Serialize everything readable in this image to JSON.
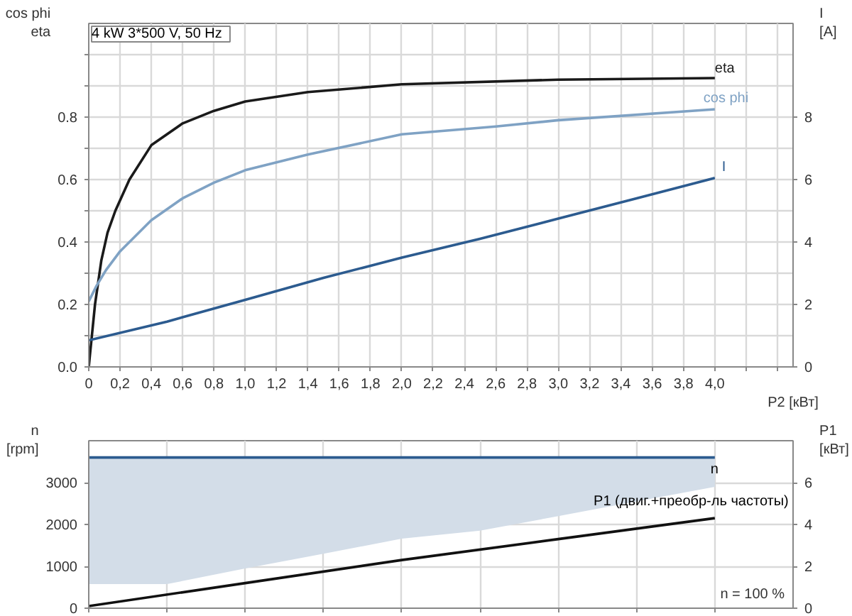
{
  "chart_data": [
    {
      "type": "line",
      "title": "4 kW   3*500 V, 50 Hz",
      "xlabel": "P2 [кВт]",
      "ylabel": "cos phi\neta",
      "y2label": "I\n[A]",
      "xlim": [
        0,
        4.5
      ],
      "xticks": [
        0,
        {
          "value": 0.2,
          "label": "0,2"
        },
        {
          "value": 0.4,
          "label": "0,4"
        },
        {
          "value": 0.6,
          "label": "0,6"
        },
        {
          "value": 0.8,
          "label": "0,8"
        },
        {
          "value": 1.0,
          "label": "1,0"
        },
        {
          "value": 1.2,
          "label": "1,2"
        },
        {
          "value": 1.4,
          "label": "1,4"
        },
        {
          "value": 1.6,
          "label": "1,6"
        },
        {
          "value": 1.8,
          "label": "1,8"
        },
        {
          "value": 2.0,
          "label": "2,0"
        },
        {
          "value": 2.2,
          "label": "2,2"
        },
        {
          "value": 2.4,
          "label": "2,4"
        },
        {
          "value": 2.6,
          "label": "2,6"
        },
        {
          "value": 2.8,
          "label": "2,8"
        },
        {
          "value": 3.0,
          "label": "3,0"
        },
        {
          "value": 3.2,
          "label": "3,2"
        },
        {
          "value": 3.4,
          "label": "3,4"
        },
        {
          "value": 3.6,
          "label": "3,6"
        },
        {
          "value": 3.8,
          "label": "3,8"
        },
        {
          "value": 4.0,
          "label": "4,0"
        },
        {
          "value": 4.2,
          "label": null
        },
        {
          "value": 4.4,
          "label": null
        }
      ],
      "ylim": [
        0,
        1.1
      ],
      "yticks": [
        {
          "value": 0,
          "label": "0.0"
        },
        {
          "value": 0.1,
          "label": null
        },
        {
          "value": 0.2,
          "label": "0.2"
        },
        {
          "value": 0.3,
          "label": null
        },
        {
          "value": 0.4,
          "label": "0.4"
        },
        {
          "value": 0.5,
          "label": null
        },
        {
          "value": 0.6,
          "label": "0.6"
        },
        {
          "value": 0.7,
          "label": null
        },
        {
          "value": 0.8,
          "label": "0.8"
        },
        {
          "value": 0.9,
          "label": null
        },
        {
          "value": 1.0,
          "label": null
        }
      ],
      "y2lim": [
        0,
        11
      ],
      "y2ticks": [
        0,
        2,
        4,
        6,
        8
      ],
      "grid": true,
      "series": [
        {
          "name": "eta",
          "color": "#1a1a1a",
          "x": [
            0,
            0.04,
            0.08,
            0.12,
            0.17,
            0.26,
            0.4,
            0.6,
            0.8,
            1.0,
            1.4,
            2.0,
            3.0,
            4.0
          ],
          "values": [
            0,
            0.2,
            0.34,
            0.43,
            0.5,
            0.6,
            0.71,
            0.78,
            0.82,
            0.85,
            0.88,
            0.905,
            0.92,
            0.925
          ]
        },
        {
          "name": "cos phi",
          "color": "#7fa2c4",
          "x": [
            0,
            0.05,
            0.11,
            0.2,
            0.4,
            0.6,
            0.8,
            1.0,
            1.4,
            2.0,
            2.6,
            3.0,
            4.0
          ],
          "values": [
            0.21,
            0.26,
            0.31,
            0.37,
            0.47,
            0.54,
            0.59,
            0.63,
            0.68,
            0.745,
            0.77,
            0.79,
            0.825
          ]
        },
        {
          "name": "I",
          "color": "#2c5b8f",
          "axis": "y2",
          "x": [
            0,
            0.5,
            1.0,
            1.5,
            2.0,
            2.5,
            3.0,
            3.5,
            4.0
          ],
          "values": [
            0.85,
            1.45,
            2.15,
            2.85,
            3.5,
            4.1,
            4.75,
            5.4,
            6.05
          ]
        }
      ]
    },
    {
      "type": "line",
      "ylabel": "n\n[rpm]",
      "y2label": "P1\n[кВт]",
      "annotations": [
        "n = 100 %"
      ],
      "xlim": [
        0,
        4.5
      ],
      "xticks": [
        0,
        0.5,
        1,
        1.5,
        2,
        2.5,
        3,
        3.5,
        4
      ],
      "tick_labels": "y",
      "ylim": [
        0,
        4000
      ],
      "yticks": [
        0,
        1000,
        2000,
        3000
      ],
      "y2lim": [
        0,
        8
      ],
      "y2ticks": [
        0,
        2,
        4,
        6
      ],
      "grid": true,
      "series": [
        {
          "name": "n",
          "color": "#2c5b8f",
          "x": [
            0,
            0.5,
            1.0,
            1.5,
            2.0,
            2.5,
            3.0,
            3.5,
            4.0
          ],
          "values": [
            3600,
            3600,
            3600,
            3600,
            3600,
            3600,
            3600,
            3600,
            3600
          ],
          "lower": [
            575,
            575,
            950,
            1300,
            1660,
            1850,
            2200,
            2550,
            2900
          ],
          "upper": [
            3600,
            3600,
            3600,
            3600,
            3600,
            3600,
            3600,
            3600,
            3600
          ]
        },
        {
          "name": "P1 (двиг.+преобр-ль частоты)",
          "color": "#111111",
          "axis": "y2",
          "x": [
            0,
            1,
            2,
            3,
            4
          ],
          "values": [
            0.1,
            1.2,
            2.3,
            3.3,
            4.3
          ]
        }
      ]
    }
  ]
}
